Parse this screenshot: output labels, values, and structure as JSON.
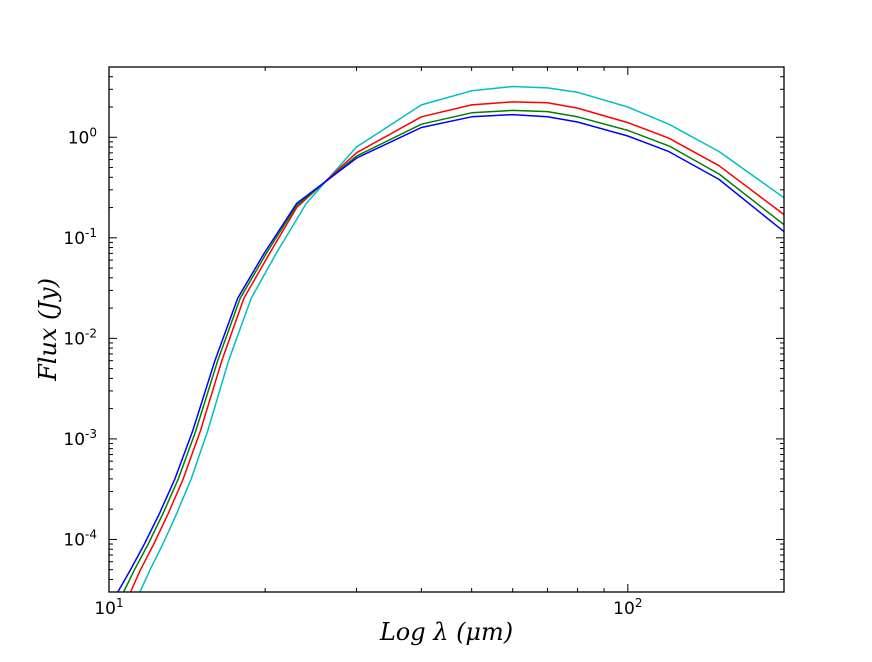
{
  "chart_data": {
    "type": "line",
    "title": "",
    "xlabel": "Log λ (μm)",
    "ylabel": "Flux (Jy)",
    "x_scale": "log",
    "y_scale": "log",
    "xlim": [
      10,
      200
    ],
    "ylim": [
      3e-05,
      5
    ],
    "grid": false,
    "legend": "none",
    "x_ticks": [
      {
        "value": 10,
        "base": "10",
        "exp": "1"
      },
      {
        "value": 100,
        "base": "10",
        "exp": "2"
      }
    ],
    "y_ticks": [
      {
        "value": 0.0001,
        "base": "10",
        "exp": "-4"
      },
      {
        "value": 0.001,
        "base": "10",
        "exp": "-3"
      },
      {
        "value": 0.01,
        "base": "10",
        "exp": "-2"
      },
      {
        "value": 0.1,
        "base": "10",
        "exp": "-1"
      },
      {
        "value": 1,
        "base": "10",
        "exp": "0"
      }
    ],
    "series": [
      {
        "color": "#00bfbf",
        "x": [
          11.47,
          12,
          12.7,
          13.5,
          14.4,
          15.5,
          17,
          18.8,
          21,
          24,
          30,
          40,
          50,
          60,
          70,
          80,
          100,
          120,
          150,
          200
        ],
        "y": [
          3e-05,
          5e-05,
          9e-05,
          0.00018,
          0.0004,
          0.0012,
          0.006,
          0.025,
          0.07,
          0.22,
          0.8,
          2.1,
          2.9,
          3.2,
          3.1,
          2.8,
          2.0,
          1.35,
          0.72,
          0.25
        ]
      },
      {
        "color": "#ff0000",
        "x": [
          11.0,
          11.5,
          12.2,
          13.0,
          13.9,
          15.0,
          16.5,
          18.2,
          20.4,
          23,
          30,
          40,
          50,
          60,
          70,
          80,
          100,
          120,
          150,
          200
        ],
        "y": [
          3e-05,
          5e-05,
          9e-05,
          0.00018,
          0.0004,
          0.0012,
          0.006,
          0.025,
          0.07,
          0.2,
          0.7,
          1.6,
          2.1,
          2.25,
          2.2,
          1.95,
          1.4,
          0.98,
          0.52,
          0.17
        ]
      },
      {
        "color": "#008000",
        "x": [
          10.67,
          11.2,
          11.9,
          12.7,
          13.6,
          14.7,
          16.2,
          17.9,
          20.1,
          23,
          30,
          40,
          50,
          60,
          70,
          80,
          100,
          120,
          150,
          200
        ],
        "y": [
          3e-05,
          5e-05,
          9e-05,
          0.00018,
          0.0004,
          0.0012,
          0.006,
          0.025,
          0.07,
          0.21,
          0.65,
          1.35,
          1.75,
          1.85,
          1.8,
          1.6,
          1.17,
          0.82,
          0.43,
          0.135
        ]
      },
      {
        "color": "#0000ff",
        "x": [
          10.4,
          11.0,
          11.7,
          12.5,
          13.4,
          14.5,
          16.0,
          17.7,
          19.9,
          23,
          30,
          40,
          50,
          60,
          70,
          80,
          100,
          120,
          150,
          200
        ],
        "y": [
          3e-05,
          5e-05,
          9e-05,
          0.00018,
          0.0004,
          0.0012,
          0.006,
          0.025,
          0.07,
          0.22,
          0.62,
          1.25,
          1.6,
          1.68,
          1.6,
          1.42,
          1.03,
          0.72,
          0.38,
          0.115
        ]
      }
    ]
  }
}
